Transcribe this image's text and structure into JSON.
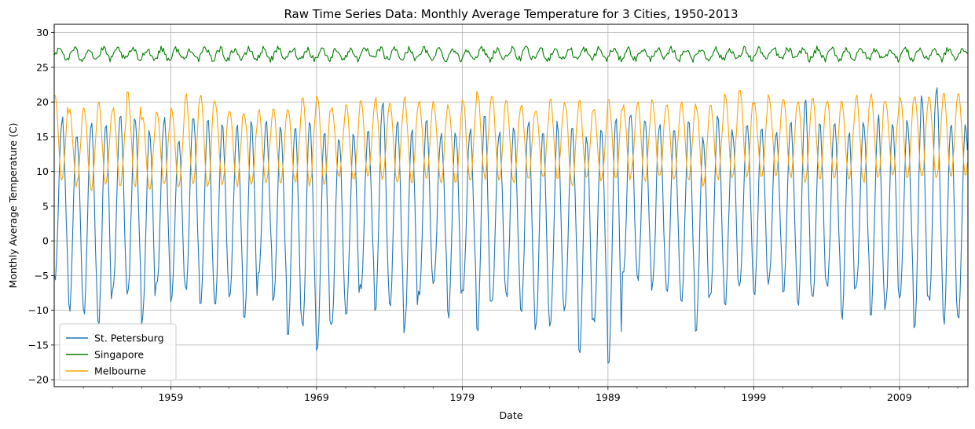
{
  "chart_data": {
    "type": "line",
    "title": "Raw Time Series Data:  Monthly Average Temperature for 3 Cities, 1950-2013",
    "xlabel": "Date",
    "ylabel": "Monthly Average Temperature (C)",
    "xlim": [
      1951.0,
      2013.7
    ],
    "ylim": [
      -21,
      31.2
    ],
    "grid": true,
    "legend_position": "lower-left",
    "x_ticks": [
      1959,
      1969,
      1979,
      1989,
      1999,
      2009
    ],
    "x_tick_labels": [
      "1959",
      "1969",
      "1979",
      "1989",
      "1999",
      "2009"
    ],
    "y_ticks": [
      -20,
      -15,
      -10,
      -5,
      0,
      5,
      10,
      15,
      20,
      25,
      30
    ],
    "y_tick_labels": [
      "−20",
      "−15",
      "−10",
      "−5",
      "0",
      "5",
      "10",
      "15",
      "20",
      "25",
      "30"
    ],
    "series": [
      {
        "name": "St. Petersburg",
        "color": "#1f77b4",
        "seasonal": "north",
        "winter_lows": [
          -8,
          -6,
          -10,
          -11,
          -12,
          -7,
          -8,
          -12,
          -7,
          -9,
          -7,
          -10,
          -9,
          -8,
          -12,
          -5,
          -9,
          -14,
          -12,
          -16,
          -12,
          -11,
          -7,
          -10,
          -9,
          -13,
          -8,
          -6,
          -11,
          -8,
          -13,
          -9,
          -8,
          -11,
          -13,
          -12,
          -10,
          -16,
          -12,
          -18,
          -5,
          -6,
          -7,
          -8,
          -9,
          -13,
          -8,
          -9,
          -7,
          -8,
          -6,
          -8,
          -10,
          -9,
          -7,
          -11,
          -7,
          -11,
          -10,
          -8,
          -13,
          -9,
          -12,
          -11
        ],
        "summer_highs": [
          15,
          17.5,
          16,
          17,
          17,
          18,
          17.5,
          16,
          17.5,
          15,
          18.5,
          18,
          16.5,
          16.5,
          17,
          17,
          16,
          17,
          17,
          16,
          15.5,
          15.5,
          16,
          20,
          17,
          16,
          17,
          15.5,
          16,
          16,
          19,
          16,
          17,
          17,
          16,
          17,
          16,
          15,
          16,
          18,
          18.5,
          17,
          17,
          16,
          17,
          15,
          18,
          16,
          17,
          17,
          16,
          17,
          20,
          17,
          17,
          16,
          17,
          18,
          17,
          17,
          21,
          22,
          17,
          17.2
        ]
      },
      {
        "name": "Singapore",
        "color": "#008000",
        "seasonal": "tropical",
        "mean": 26.9,
        "amplitude": 0.75
      },
      {
        "name": "Melbourne",
        "color": "#ffa500",
        "seasonal": "south",
        "winter_lows": [
          8,
          8.5,
          8,
          7.5,
          8,
          8,
          8,
          7.5,
          8,
          8,
          8,
          7.5,
          8,
          8,
          8,
          8,
          8.5,
          8.5,
          8,
          8,
          9,
          8.5,
          9,
          9,
          8.5,
          8.5,
          9,
          8.5,
          8,
          8.5,
          9,
          8.5,
          8,
          9,
          9,
          9,
          8,
          9,
          8.5,
          9,
          9,
          8.5,
          9,
          8.5,
          9,
          8,
          9,
          9,
          9,
          9,
          9.5,
          9,
          8.5,
          9,
          9,
          9,
          8.5,
          9,
          9.5,
          9,
          9,
          9,
          9.5,
          9.5
        ],
        "summer_highs": [
          18,
          21.5,
          19,
          19,
          20,
          19,
          21.5,
          18,
          18.5,
          19,
          21,
          21,
          20,
          19,
          18.5,
          19,
          19,
          19,
          20.5,
          21,
          19,
          19.5,
          20,
          20.5,
          20,
          20.5,
          20,
          20,
          19.5,
          20.5,
          21.5,
          21,
          20,
          19.5,
          19,
          20.5,
          20,
          20,
          19,
          20.5,
          19.5,
          20,
          20.5,
          20,
          20,
          19.5,
          20,
          21,
          22,
          20,
          21,
          20.5,
          20,
          21,
          20,
          20,
          21,
          21,
          20,
          21,
          21,
          20.5,
          21,
          21
        ]
      }
    ],
    "legend": [
      "St. Petersburg",
      "Singapore",
      "Melbourne"
    ]
  }
}
